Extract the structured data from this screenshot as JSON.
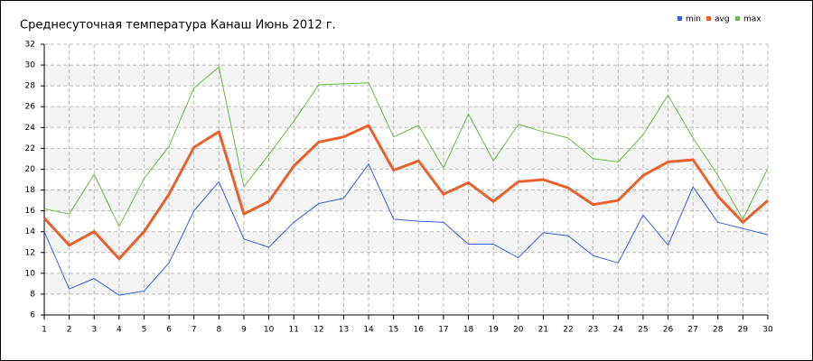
{
  "chart_data": {
    "type": "line",
    "title": "Среднесуточная температура Канаш  Июнь 2012 г.",
    "x": [
      1,
      2,
      3,
      4,
      5,
      6,
      7,
      8,
      9,
      10,
      11,
      12,
      13,
      14,
      15,
      16,
      17,
      18,
      19,
      20,
      21,
      22,
      23,
      24,
      25,
      26,
      27,
      28,
      29,
      30
    ],
    "series": [
      {
        "name": "min",
        "color": "#3b5fd6",
        "width": 1,
        "values": [
          14.0,
          8.5,
          9.5,
          7.9,
          8.3,
          11.0,
          16.0,
          18.8,
          13.3,
          12.5,
          14.9,
          16.7,
          17.2,
          20.5,
          15.2,
          15.0,
          14.9,
          12.8,
          12.8,
          11.5,
          13.9,
          13.6,
          11.7,
          11.0,
          15.6,
          12.7,
          18.3,
          14.9,
          14.3,
          13.7
        ]
      },
      {
        "name": "avg",
        "color": "#e8602c",
        "width": 3,
        "values": [
          15.3,
          12.7,
          14.0,
          11.4,
          14.0,
          17.6,
          22.1,
          23.6,
          15.7,
          16.9,
          20.3,
          22.6,
          23.1,
          24.2,
          19.9,
          20.8,
          17.6,
          18.7,
          16.9,
          18.8,
          19.0,
          18.2,
          16.6,
          17.0,
          19.4,
          20.7,
          20.9,
          17.4,
          14.9,
          17.0
        ]
      },
      {
        "name": "max",
        "color": "#6ab84a",
        "width": 1,
        "values": [
          16.2,
          15.7,
          19.5,
          14.5,
          19.1,
          22.2,
          27.8,
          29.8,
          18.3,
          21.4,
          24.6,
          28.1,
          28.2,
          28.3,
          23.1,
          24.2,
          20.1,
          25.3,
          20.8,
          24.3,
          23.6,
          23.0,
          21.0,
          20.7,
          23.3,
          27.1,
          23.0,
          19.4,
          15.2,
          20.1
        ]
      }
    ],
    "xlim": [
      1,
      30
    ],
    "xticks": [
      1,
      2,
      3,
      4,
      5,
      6,
      7,
      8,
      9,
      10,
      11,
      12,
      13,
      14,
      15,
      16,
      17,
      18,
      19,
      20,
      21,
      22,
      23,
      24,
      25,
      26,
      27,
      28,
      29,
      30
    ],
    "ylim": [
      6,
      32
    ],
    "yticks": [
      6,
      8,
      10,
      12,
      14,
      16,
      18,
      20,
      22,
      24,
      26,
      28,
      30,
      32
    ],
    "grid": true,
    "legend": "top-right"
  }
}
